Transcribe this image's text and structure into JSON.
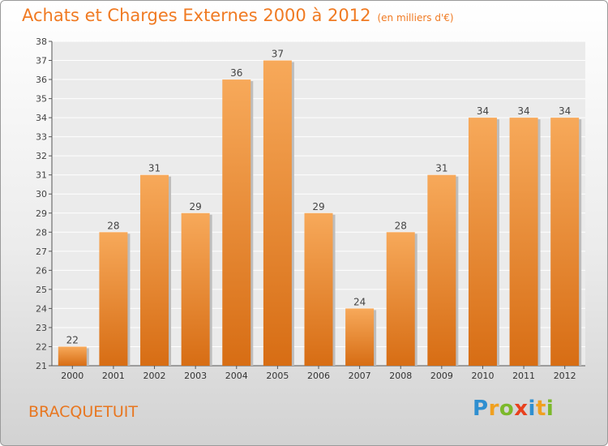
{
  "title": "Achats et Charges Externes 2000 à 2012",
  "unit": "(en milliers d'€)",
  "commune": "BRACQUETUIT",
  "logo": {
    "letters": [
      "P",
      "r",
      "o",
      "x",
      "i",
      "t",
      "i"
    ],
    "colors": [
      "#2f8fd0",
      "#f0a020",
      "#7cb92b",
      "#e8411e",
      "#2f8fd0",
      "#f0a020",
      "#7cb92b"
    ]
  },
  "colors": {
    "bar_light": "#f7a95a",
    "bar_dark": "#d76d14",
    "title": "#f07a22"
  },
  "chart_data": {
    "type": "bar",
    "categories": [
      "2000",
      "2001",
      "2002",
      "2003",
      "2004",
      "2005",
      "2006",
      "2007",
      "2008",
      "2009",
      "2010",
      "2011",
      "2012"
    ],
    "values": [
      22,
      28,
      31,
      29,
      36,
      37,
      29,
      24,
      28,
      31,
      34,
      34,
      34
    ],
    "ylim": [
      21,
      38
    ],
    "yticks": [
      21,
      22,
      23,
      24,
      25,
      26,
      27,
      28,
      29,
      30,
      31,
      32,
      33,
      34,
      35,
      36,
      37,
      38
    ],
    "grid": true
  }
}
